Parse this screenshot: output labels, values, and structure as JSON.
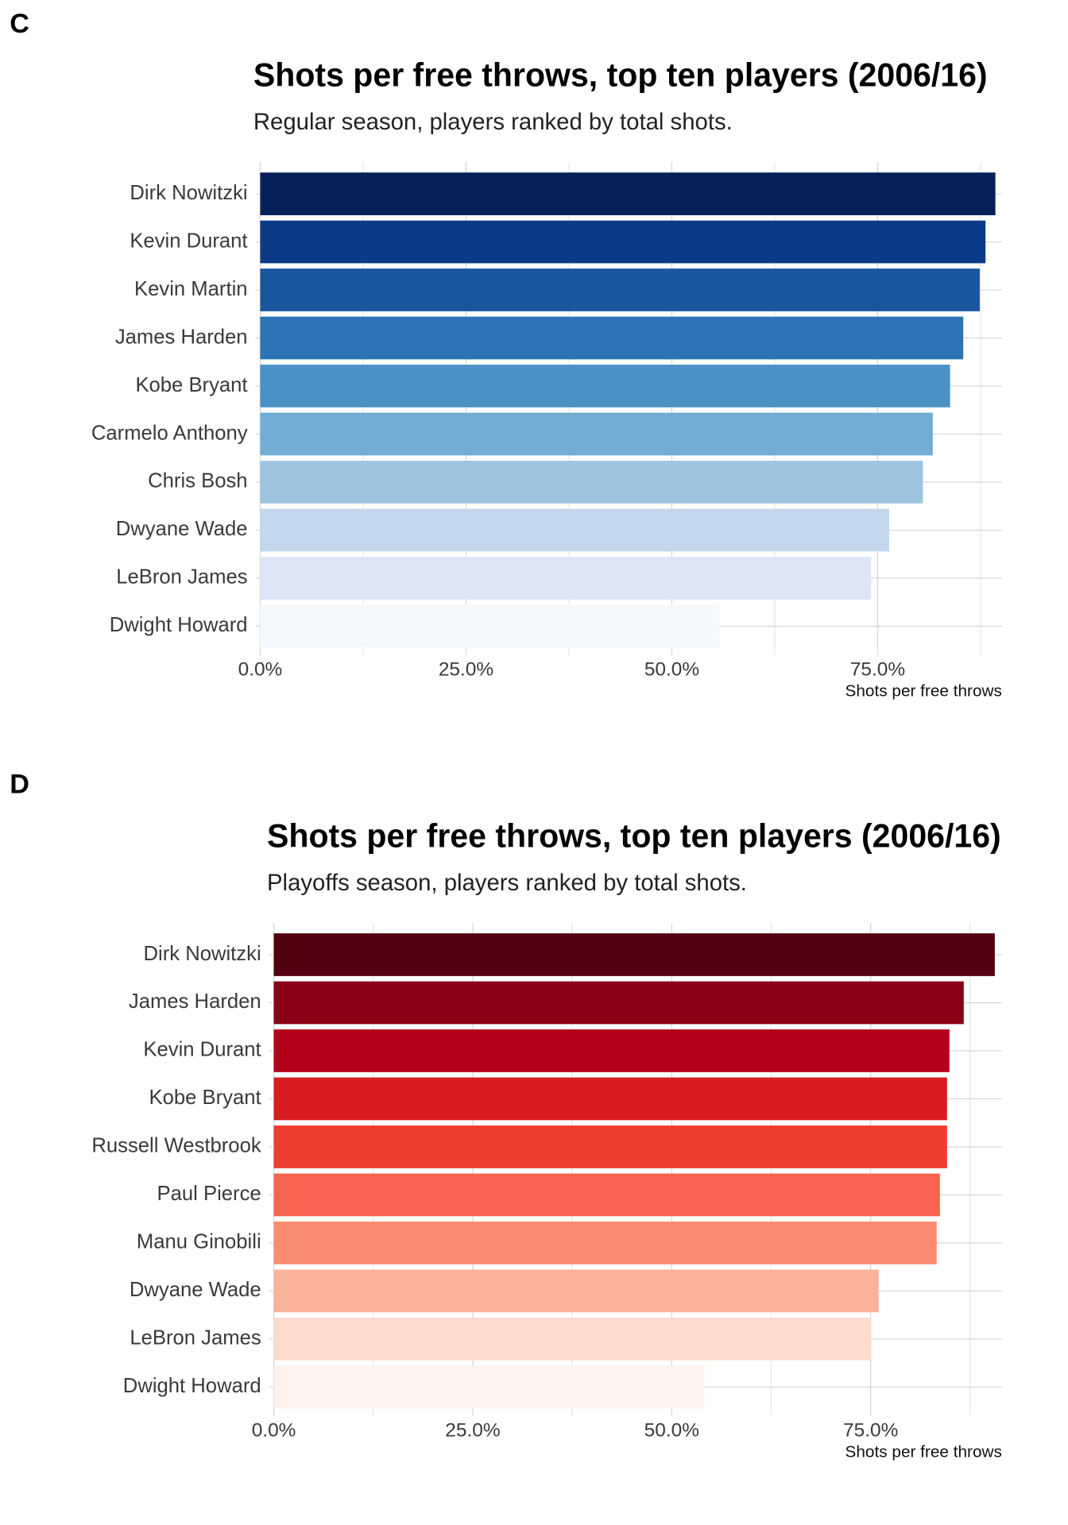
{
  "chart_data": [
    {
      "type": "bar",
      "orientation": "horizontal",
      "panel": "C",
      "title": "Shots per free throws, top ten players (2006/16)",
      "subtitle": "Regular season, players ranked by total shots.",
      "x_label": "Shots per free throws",
      "categories": [
        "Dirk Nowitzki",
        "Kevin Durant",
        "Kevin Martin",
        "James Harden",
        "Kobe Bryant",
        "Carmelo Anthony",
        "Chris Bosh",
        "Dwyane Wade",
        "LeBron James",
        "Dwight Howard"
      ],
      "values": [
        89.3,
        88.1,
        87.4,
        85.4,
        83.8,
        81.7,
        80.5,
        76.4,
        74.2,
        55.8
      ],
      "colors": [
        "#08205a",
        "#0b3b86",
        "#1a56a0",
        "#2c74b5",
        "#4a92c6",
        "#72aed3",
        "#9ec5e0",
        "#c2d7ec",
        "#dbe7f4",
        "#f5f9fe"
      ],
      "xlim": [
        0,
        90.1
      ],
      "xticks": [
        {
          "value": 0,
          "label": "0.0%"
        },
        {
          "value": 25,
          "label": "25.0%"
        },
        {
          "value": 50,
          "label": "50.0%"
        },
        {
          "value": 75,
          "label": "75.0%"
        }
      ],
      "minor_xticks": [
        12.5,
        37.5,
        62.5,
        87.5
      ],
      "grid": true
    },
    {
      "type": "bar",
      "orientation": "horizontal",
      "panel": "D",
      "title": "Shots per free throws, top ten players (2006/16)",
      "subtitle": "Playoffs season, players ranked by total shots.",
      "x_label": "Shots per free throws",
      "categories": [
        "Dirk Nowitzki",
        "James Harden",
        "Kevin Durant",
        "Kobe Bryant",
        "Russell Westbrook",
        "Paul Pierce",
        "Manu Ginobili",
        "Dwyane Wade",
        "LeBron James",
        "Dwight Howard"
      ],
      "values": [
        90.6,
        86.7,
        84.9,
        84.6,
        84.6,
        83.7,
        83.3,
        76.0,
        75.0,
        54.1
      ],
      "colors": [
        "#530010",
        "#8a0014",
        "#b5001b",
        "#d81c22",
        "#ef3d30",
        "#f76350",
        "#f98c70",
        "#fab399",
        "#fcdbcc",
        "#fff1ec"
      ],
      "xlim": [
        0,
        91.5
      ],
      "xticks": [
        {
          "value": 0,
          "label": "0.0%"
        },
        {
          "value": 25,
          "label": "25.0%"
        },
        {
          "value": 50,
          "label": "50.0%"
        },
        {
          "value": 75,
          "label": "75.0%"
        }
      ],
      "minor_xticks": [
        12.5,
        37.5,
        62.5,
        87.5
      ],
      "grid": true
    }
  ]
}
